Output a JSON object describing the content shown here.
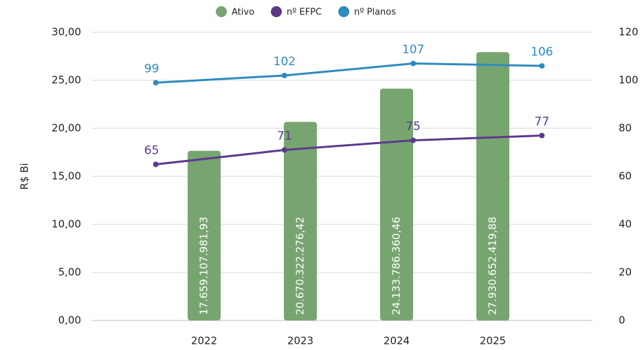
{
  "chart_data": {
    "type": "bar",
    "categories": [
      "2022",
      "2023",
      "2024",
      "2025"
    ],
    "ylabel": "R$ Bi",
    "ylim": [
      0,
      30
    ],
    "yticks": [
      {
        "value": 0,
        "label": "0,00"
      },
      {
        "value": 5,
        "label": "5,00"
      },
      {
        "value": 10,
        "label": "10,00"
      },
      {
        "value": 15,
        "label": "15,00"
      },
      {
        "value": 20,
        "label": "20,00"
      },
      {
        "value": 25,
        "label": "25,00"
      },
      {
        "value": 30,
        "label": "30,00"
      }
    ],
    "y2lim": [
      0,
      120
    ],
    "y2ticks": [
      0,
      20,
      40,
      60,
      80,
      100,
      120
    ],
    "grid": true,
    "legend": "top",
    "series": [
      {
        "name": "Ativo",
        "type": "bar",
        "color": "#77a570",
        "values": [
          17.65910798193,
          20.67032227642,
          24.13378636046,
          27.93065241988
        ],
        "value_labels": [
          "17.659.107.981,93",
          "20.670.322.276,42",
          "24.133.786.360,46",
          "27.930.652.419,88"
        ]
      },
      {
        "name": "nº EFPC",
        "type": "line",
        "axis": "y2",
        "color": "#5b3a8c",
        "values": [
          65,
          71,
          75,
          77
        ]
      },
      {
        "name": "nº Planos",
        "type": "line",
        "axis": "y2",
        "color": "#2e8bc0",
        "values": [
          99,
          102,
          107,
          106
        ]
      }
    ]
  }
}
